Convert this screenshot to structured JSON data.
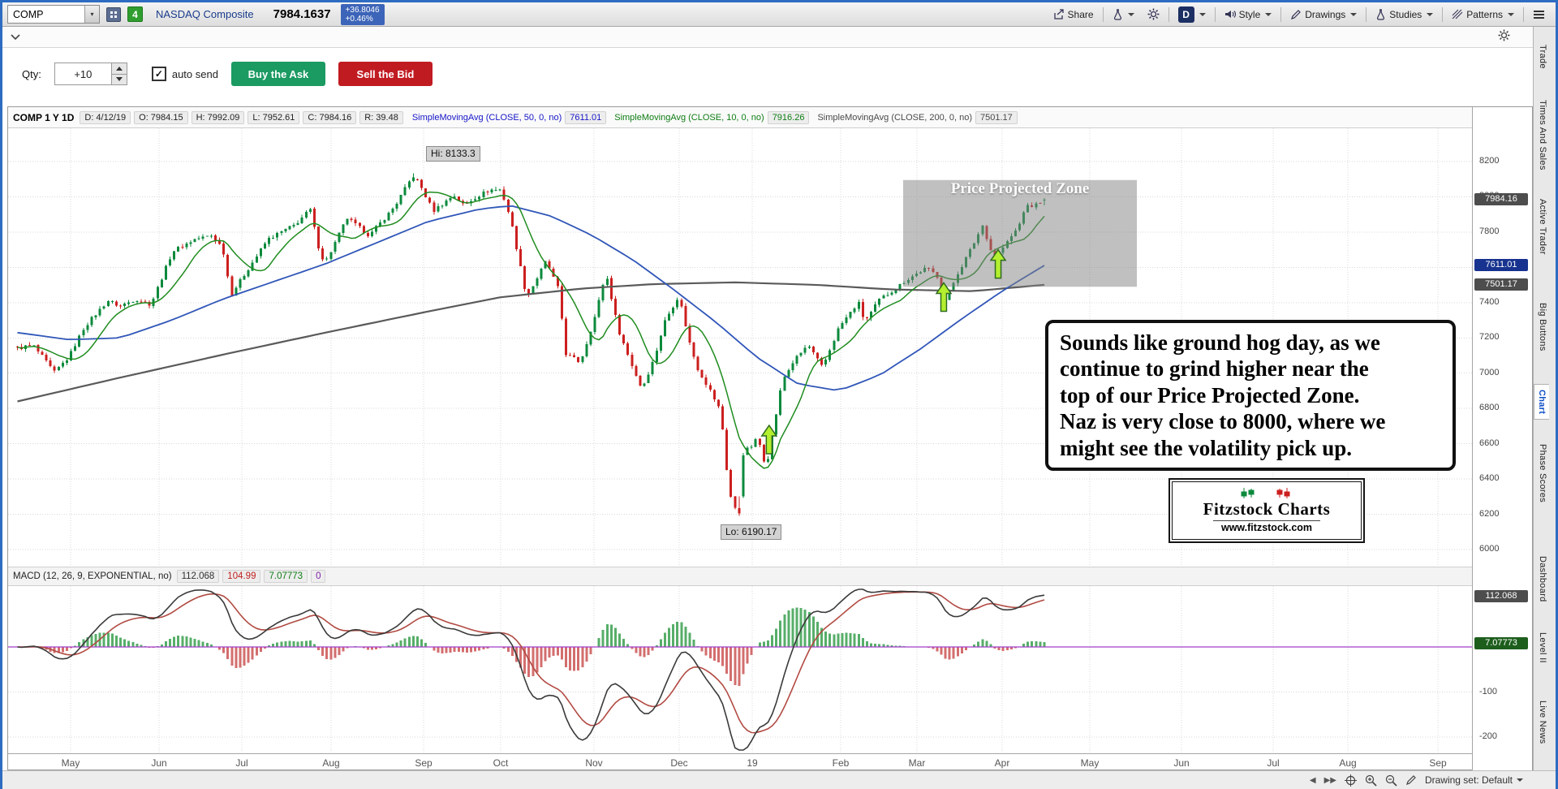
{
  "toolbar": {
    "symbol": "COMP",
    "link_badge": "4",
    "instrument": "NASDAQ Composite",
    "last": "7984.1637",
    "change_abs": "+36.8046",
    "change_pct": "+0.46%",
    "share": "Share",
    "timeframe": "D",
    "style": "Style",
    "drawings": "Drawings",
    "studies": "Studies",
    "patterns": "Patterns"
  },
  "order_bar": {
    "qty_label": "Qty:",
    "qty_value": "+10",
    "auto_send": "auto send",
    "auto_send_checked": true,
    "buy": "Buy the Ask",
    "sell": "Sell the Bid",
    "buy_color": "#1b9a62",
    "sell_color": "#c11b22"
  },
  "chart_header": {
    "title": "COMP 1 Y 1D",
    "fields": [
      "D: 4/12/19",
      "O: 7984.15",
      "H: 7992.09",
      "L: 7952.61",
      "C: 7984.16",
      "R: 39.48"
    ],
    "studies": [
      {
        "label": "SimpleMovingAvg (CLOSE, 50, 0, no)",
        "value": "7611.01",
        "color": "#1515c8"
      },
      {
        "label": "SimpleMovingAvg (CLOSE, 10, 0, no)",
        "value": "7916.26",
        "color": "#0f7d14"
      },
      {
        "label": "SimpleMovingAvg (CLOSE, 200, 0, no)",
        "value": "7501.17",
        "color": "#4a4a4a"
      }
    ]
  },
  "macd_header": {
    "title": "MACD (12, 26, 9, EXPONENTIAL, no)",
    "values": [
      {
        "text": "112.068",
        "color": "#303030"
      },
      {
        "text": "104.99",
        "color": "#c22020"
      },
      {
        "text": "7.07773",
        "color": "#0f7d14"
      },
      {
        "text": "0",
        "color": "#8022a8"
      }
    ]
  },
  "price_axis": {
    "ticks": [
      8200,
      8000,
      7800,
      7600,
      7400,
      7200,
      7000,
      6800,
      6600,
      6400,
      6200,
      6000
    ],
    "badges": [
      {
        "text": "7984.16",
        "value": 7984.16,
        "bg": "#4d4d4d"
      },
      {
        "text": "7611.01",
        "value": 7611.01,
        "bg": "#17338f"
      },
      {
        "text": "7501.17",
        "value": 7501.17,
        "bg": "#4d4d4d"
      }
    ]
  },
  "macd_axis": {
    "ticks": [
      -100,
      -200
    ],
    "badges": [
      {
        "text": "112.068",
        "value": 112.068,
        "bg": "#4d4d4d"
      },
      {
        "text": "7.07773",
        "value": 7.07773,
        "bg": "#1d5e1d"
      }
    ]
  },
  "x_axis": {
    "labels": [
      "May",
      "Jun",
      "Jul",
      "Aug",
      "Sep",
      "Oct",
      "Nov",
      "Dec",
      "19",
      "Feb",
      "Mar",
      "Apr",
      "May",
      "Jun",
      "Jul",
      "Aug",
      "Sep"
    ]
  },
  "annotations": {
    "hi": "Hi: 8133.3",
    "lo": "Lo: 6190.17",
    "zone": "Price Projected Zone",
    "note_lines": [
      "Sounds like ground hog day, as we",
      "continue to grind higher near the",
      "top of our Price Projected Zone.",
      "Naz is very close to 8000, where we",
      "might see the volatility pick up."
    ],
    "logo_title": "Fitzstock Charts",
    "logo_site": "www.fitzstock.com"
  },
  "bottom_bar": {
    "drawing_set": "Drawing set: Default"
  },
  "sidebar": {
    "tabs": [
      "Trade",
      "Times And Sales",
      "Active Trader",
      "Big Buttons",
      "Chart",
      "Phase Scores",
      "Dashboard",
      "Level II",
      "Live News"
    ],
    "active": "Chart"
  },
  "chart_data": {
    "type": "candlestick",
    "symbol": "COMP",
    "period": "1 Y",
    "interval": "1D",
    "hi": 8133.3,
    "lo": 6190.17,
    "current": {
      "date": "4/12/19",
      "open": 7984.15,
      "high": 7992.09,
      "low": 7952.61,
      "close": 7984.16,
      "range": 39.48
    },
    "y_ticks": [
      8200,
      8000,
      7800,
      7600,
      7400,
      7200,
      7000,
      6800,
      6600,
      6400,
      6200,
      6000
    ],
    "num_candles": 250,
    "close_anchors": [
      [
        0,
        7140
      ],
      [
        0.015,
        7160
      ],
      [
        0.036,
        7005
      ],
      [
        0.05,
        7090
      ],
      [
        0.065,
        7260
      ],
      [
        0.088,
        7411
      ],
      [
        0.1,
        7380
      ],
      [
        0.115,
        7420
      ],
      [
        0.13,
        7390
      ],
      [
        0.151,
        7690
      ],
      [
        0.173,
        7760
      ],
      [
        0.189,
        7780
      ],
      [
        0.2,
        7710
      ],
      [
        0.208,
        7445
      ],
      [
        0.222,
        7567
      ],
      [
        0.244,
        7760
      ],
      [
        0.27,
        7840
      ],
      [
        0.285,
        7930
      ],
      [
        0.295,
        7670
      ],
      [
        0.3,
        7630
      ],
      [
        0.321,
        7880
      ],
      [
        0.343,
        7780
      ],
      [
        0.368,
        7950
      ],
      [
        0.384,
        8110
      ],
      [
        0.39,
        8090
      ],
      [
        0.405,
        7920
      ],
      [
        0.425,
        8010
      ],
      [
        0.435,
        7950
      ],
      [
        0.444,
        7990
      ],
      [
        0.46,
        8040
      ],
      [
        0.471,
        8040
      ],
      [
        0.48,
        7880
      ],
      [
        0.496,
        7430
      ],
      [
        0.515,
        7640
      ],
      [
        0.527,
        7470
      ],
      [
        0.534,
        7110
      ],
      [
        0.548,
        7060
      ],
      [
        0.563,
        7330
      ],
      [
        0.573,
        7570
      ],
      [
        0.585,
        7250
      ],
      [
        0.598,
        7050
      ],
      [
        0.608,
        6910
      ],
      [
        0.62,
        7080
      ],
      [
        0.63,
        7290
      ],
      [
        0.644,
        7440
      ],
      [
        0.655,
        7160
      ],
      [
        0.663,
        7020
      ],
      [
        0.674,
        6910
      ],
      [
        0.685,
        6780
      ],
      [
        0.693,
        6330
      ],
      [
        0.701,
        6193
      ],
      [
        0.707,
        6554
      ],
      [
        0.714,
        6580
      ],
      [
        0.721,
        6635
      ],
      [
        0.729,
        6464
      ],
      [
        0.738,
        6740
      ],
      [
        0.745,
        6960
      ],
      [
        0.756,
        7070
      ],
      [
        0.77,
        7160
      ],
      [
        0.784,
        7030
      ],
      [
        0.8,
        7260
      ],
      [
        0.819,
        7400
      ],
      [
        0.825,
        7290
      ],
      [
        0.84,
        7420
      ],
      [
        0.855,
        7480
      ],
      [
        0.866,
        7530
      ],
      [
        0.885,
        7595
      ],
      [
        0.895,
        7560
      ],
      [
        0.904,
        7410
      ],
      [
        0.915,
        7560
      ],
      [
        0.93,
        7720
      ],
      [
        0.94,
        7840
      ],
      [
        0.951,
        7640
      ],
      [
        0.962,
        7730
      ],
      [
        0.975,
        7830
      ],
      [
        0.981,
        7940
      ],
      [
        0.99,
        7950
      ],
      [
        1,
        7984
      ]
    ],
    "ma50_anchors": [
      [
        0,
        7230
      ],
      [
        0.05,
        7190
      ],
      [
        0.1,
        7200
      ],
      [
        0.15,
        7300
      ],
      [
        0.2,
        7420
      ],
      [
        0.25,
        7520
      ],
      [
        0.3,
        7620
      ],
      [
        0.35,
        7740
      ],
      [
        0.4,
        7860
      ],
      [
        0.45,
        7930
      ],
      [
        0.48,
        7950
      ],
      [
        0.52,
        7890
      ],
      [
        0.56,
        7780
      ],
      [
        0.6,
        7640
      ],
      [
        0.64,
        7470
      ],
      [
        0.68,
        7290
      ],
      [
        0.72,
        7090
      ],
      [
        0.76,
        6940
      ],
      [
        0.8,
        6900
      ],
      [
        0.84,
        6990
      ],
      [
        0.88,
        7140
      ],
      [
        0.92,
        7310
      ],
      [
        0.96,
        7470
      ],
      [
        1,
        7611
      ]
    ],
    "ma200_anchors": [
      [
        0,
        6840
      ],
      [
        0.1,
        6975
      ],
      [
        0.2,
        7105
      ],
      [
        0.3,
        7230
      ],
      [
        0.4,
        7350
      ],
      [
        0.47,
        7430
      ],
      [
        0.55,
        7480
      ],
      [
        0.62,
        7505
      ],
      [
        0.7,
        7515
      ],
      [
        0.78,
        7500
      ],
      [
        0.85,
        7475
      ],
      [
        0.93,
        7465
      ],
      [
        1,
        7501
      ]
    ],
    "ma_colors": {
      "ma10": "#1f8c1f",
      "ma50": "#3056b8",
      "ma200": "#5a5a5a"
    },
    "candle_colors": {
      "up": "#0b8a3c",
      "down": "#cc1f1f"
    },
    "macd": {
      "fast": 12,
      "slow": 26,
      "signal_period": 9,
      "line": 112.068,
      "signal": 104.99,
      "histogram": 7.07773,
      "line_color": "#3a3a3a",
      "signal_color": "#b14a42",
      "hist_up": "#3aa050",
      "hist_down": "#cc5555",
      "zero_color": "#a23ccc"
    },
    "zone": {
      "label": "Price Projected Zone",
      "price_top": 8095,
      "price_bottom": 7490
    },
    "arrows": [
      {
        "f": 0.732,
        "tip_price": 6704
      },
      {
        "f": 0.902,
        "tip_price": 7512
      },
      {
        "f": 0.955,
        "tip_price": 7700
      }
    ]
  }
}
